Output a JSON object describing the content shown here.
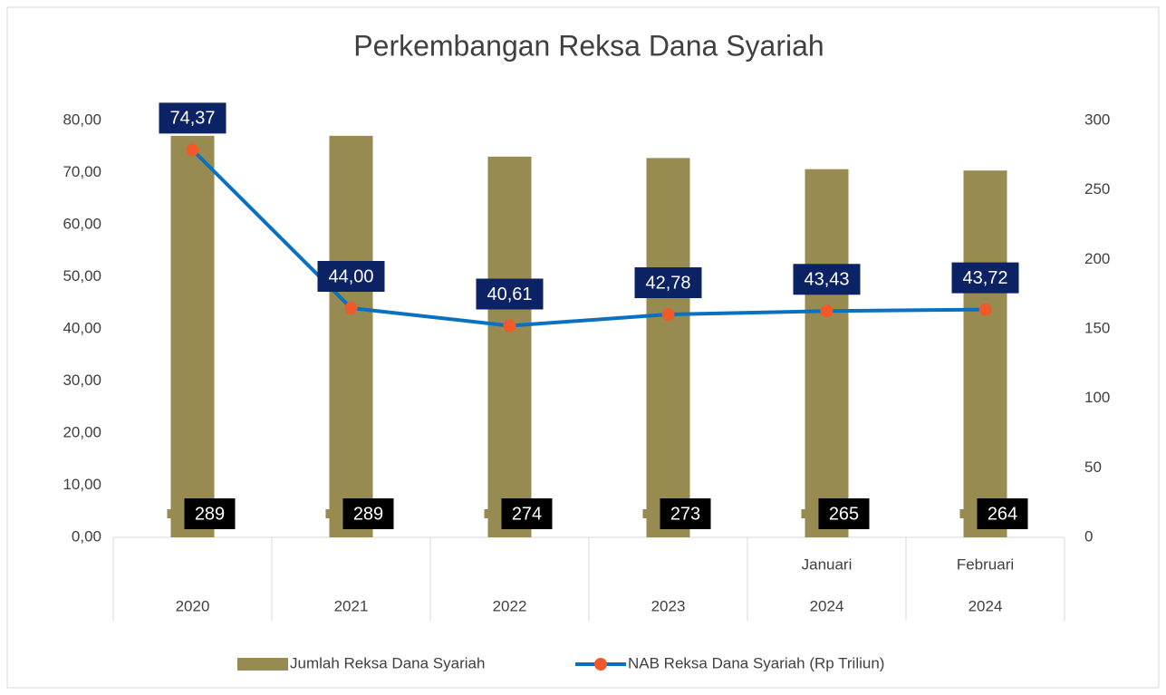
{
  "chart_data": {
    "type": "bar-line",
    "title": "Perkembangan Reksa Dana Syariah",
    "categories": [
      [
        "2020"
      ],
      [
        "2021"
      ],
      [
        "2022"
      ],
      [
        "2023"
      ],
      [
        "Januari",
        "2024"
      ],
      [
        "Februari",
        "2024"
      ]
    ],
    "series": [
      {
        "name": "Jumlah Reksa Dana Syariah",
        "type": "bar",
        "axis": "y2",
        "color": "#978b52",
        "values": [
          289,
          289,
          274,
          273,
          265,
          264
        ]
      },
      {
        "name": "NAB Reksa Dana Syariah (Rp Triliun)",
        "type": "line",
        "axis": "y",
        "color": "#0a70c0",
        "marker_color": "#f05a28",
        "values": [
          74.37,
          44.0,
          40.61,
          42.78,
          43.43,
          43.72
        ],
        "value_labels": [
          "74,37",
          "44,00",
          "40,61",
          "42,78",
          "43,43",
          "43,72"
        ]
      }
    ],
    "ylim": [
      0,
      80
    ],
    "yticks": [
      {
        "value": 0,
        "label": "0,00"
      },
      {
        "value": 10,
        "label": "10,00"
      },
      {
        "value": 20,
        "label": "20,00"
      },
      {
        "value": 30,
        "label": "30,00"
      },
      {
        "value": 40,
        "label": "40,00"
      },
      {
        "value": 50,
        "label": "50,00"
      },
      {
        "value": 60,
        "label": "60,00"
      },
      {
        "value": 70,
        "label": "70,00"
      },
      {
        "value": 80,
        "label": "80,00"
      }
    ],
    "y2lim": [
      0,
      300
    ],
    "y2ticks": [
      0,
      50,
      100,
      150,
      200,
      250,
      300
    ],
    "legend": "bottom"
  }
}
